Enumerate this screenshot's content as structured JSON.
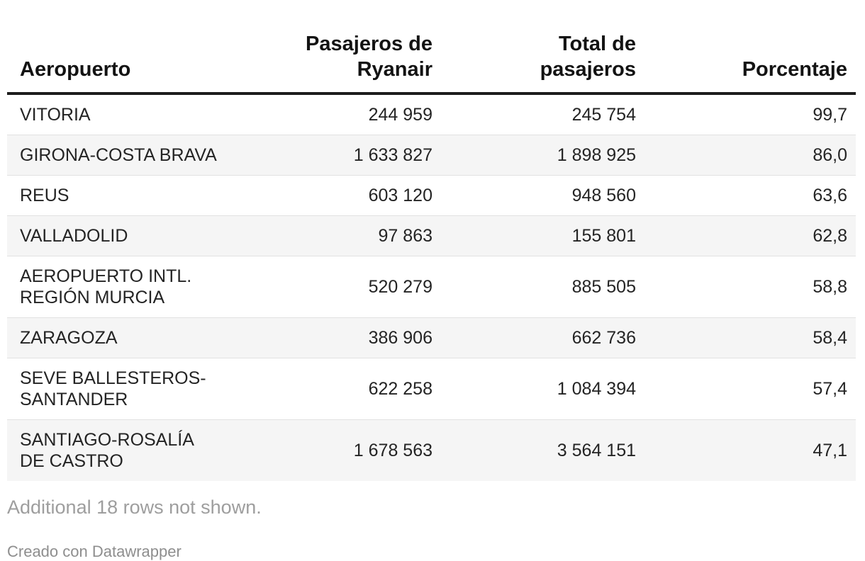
{
  "chart_data": {
    "type": "table",
    "columns": [
      "Aeropuerto",
      "Pasajeros de\nRyanair",
      "Total de\npasajeros",
      "Porcentaje"
    ],
    "col_align": [
      "left",
      "right",
      "right",
      "right"
    ],
    "rows": [
      [
        "VITORIA",
        "244 959",
        "245 754",
        "99,7"
      ],
      [
        "GIRONA-COSTA BRAVA",
        "1 633 827",
        "1 898 925",
        "86,0"
      ],
      [
        "REUS",
        "603 120",
        "948 560",
        "63,6"
      ],
      [
        "VALLADOLID",
        "97 863",
        "155 801",
        "62,8"
      ],
      [
        "AEROPUERTO INTL.\nREGIÓN MURCIA",
        "520 279",
        "885 505",
        "58,8"
      ],
      [
        "ZARAGOZA",
        "386 906",
        "662 736",
        "58,4"
      ],
      [
        "SEVE BALLESTEROS-\nSANTANDER",
        "622 258",
        "1 084 394",
        "57,4"
      ],
      [
        "SANTIAGO-ROSALÍA\nDE CASTRO",
        "1 678 563",
        "3 564 151",
        "47,1"
      ]
    ],
    "notes": "Additional 18 rows not shown.",
    "attribution": "Creado con Datawrapper"
  },
  "colors": {
    "background": "#ffffff",
    "header_rule": "#1d1d1d",
    "header_text": "#131313",
    "body_text": "#242424",
    "row_alt_bg": "#f5f5f5",
    "row_border": "#e1e1e1",
    "notice_text": "#9e9e9e",
    "attribution_text": "#8e8e8e"
  }
}
